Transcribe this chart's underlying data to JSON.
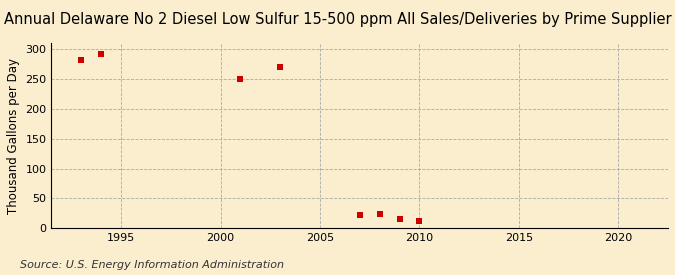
{
  "title": "Annual Delaware No 2 Diesel Low Sulfur 15-500 ppm All Sales/Deliveries by Prime Supplier",
  "ylabel": "Thousand Gallons per Day",
  "source": "Source: U.S. Energy Information Administration",
  "x_values": [
    1993,
    1994,
    2001,
    2003,
    2007,
    2008,
    2009,
    2010
  ],
  "y_values": [
    281,
    291,
    250,
    270,
    22,
    24,
    15,
    13
  ],
  "xlim": [
    1991.5,
    2022.5
  ],
  "ylim": [
    0,
    310
  ],
  "yticks": [
    0,
    50,
    100,
    150,
    200,
    250,
    300
  ],
  "xticks": [
    1995,
    2000,
    2005,
    2010,
    2015,
    2020
  ],
  "marker_color": "#cc0000",
  "marker": "s",
  "marker_size": 4,
  "background_color": "#faeecf",
  "grid_color": "#aaaaaa",
  "title_fontsize": 10.5,
  "label_fontsize": 8.5,
  "tick_fontsize": 8,
  "source_fontsize": 8
}
